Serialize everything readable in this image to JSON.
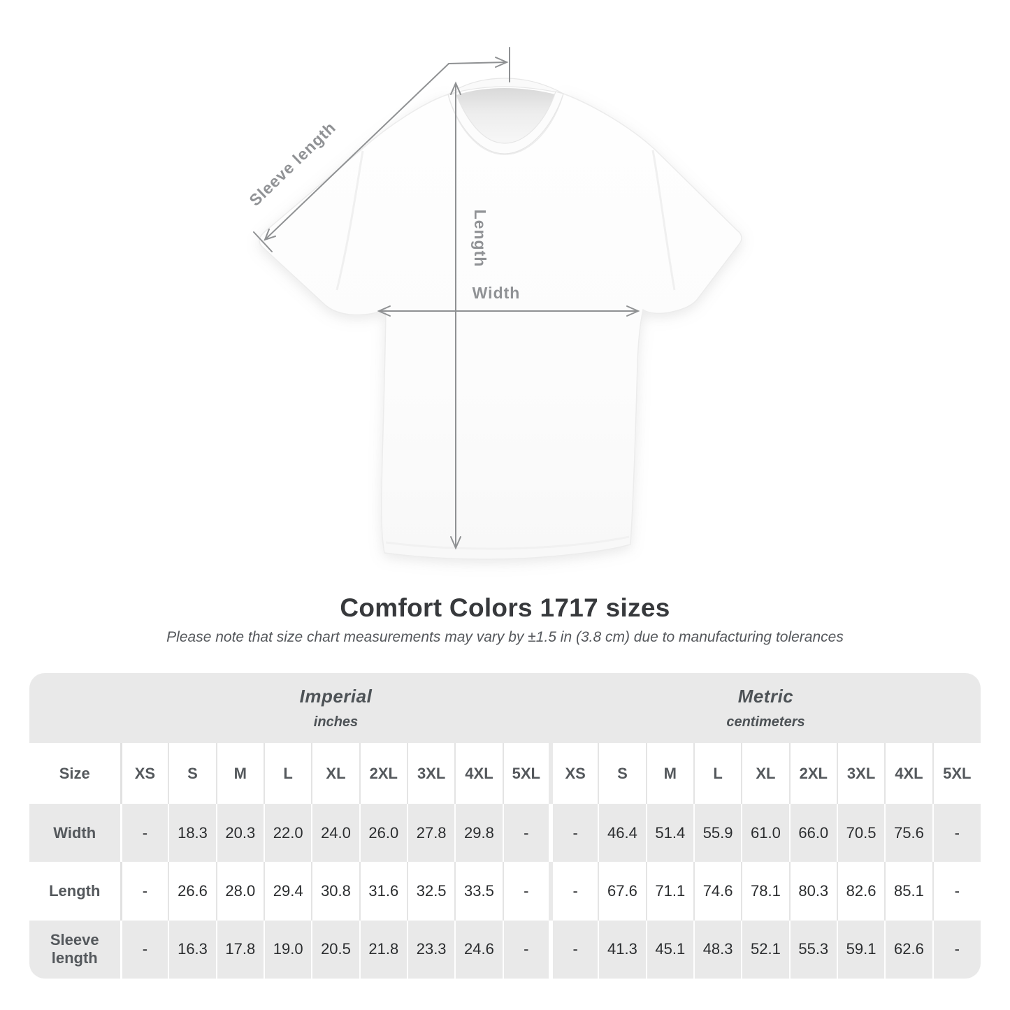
{
  "diagram": {
    "labels": {
      "sleeve": "Sleeve length",
      "length": "Length",
      "width": "Width"
    },
    "line_color": "#8f9193",
    "label_color": "#909295"
  },
  "heading": {
    "title": "Comfort Colors 1717 sizes",
    "note": "Please note that size chart measurements may vary by ±1.5 in (3.8 cm) due to manufacturing tolerances"
  },
  "table": {
    "size_label": "Size",
    "unit_groups": [
      {
        "name": "Imperial",
        "unit": "inches"
      },
      {
        "name": "Metric",
        "unit": "centimeters"
      }
    ],
    "sizes": [
      "XS",
      "S",
      "M",
      "L",
      "XL",
      "2XL",
      "3XL",
      "4XL",
      "5XL"
    ],
    "rows": [
      {
        "label": "Width",
        "imperial": [
          "-",
          "18.3",
          "20.3",
          "22.0",
          "24.0",
          "26.0",
          "27.8",
          "29.8",
          "-"
        ],
        "metric": [
          "-",
          "46.4",
          "51.4",
          "55.9",
          "61.0",
          "66.0",
          "70.5",
          "75.6",
          "-"
        ]
      },
      {
        "label": "Length",
        "imperial": [
          "-",
          "26.6",
          "28.0",
          "29.4",
          "30.8",
          "31.6",
          "32.5",
          "33.5",
          "-"
        ],
        "metric": [
          "-",
          "67.6",
          "71.1",
          "74.6",
          "78.1",
          "80.3",
          "82.6",
          "85.1",
          "-"
        ]
      },
      {
        "label": "Sleeve length",
        "imperial": [
          "-",
          "16.3",
          "17.8",
          "19.0",
          "20.5",
          "21.8",
          "23.3",
          "24.6",
          "-"
        ],
        "metric": [
          "-",
          "41.3",
          "45.1",
          "48.3",
          "52.1",
          "55.3",
          "59.1",
          "62.6",
          "-"
        ]
      }
    ],
    "colors": {
      "band_gray": "#e9e9e9",
      "header_text": "#54585c",
      "value_text": "#2b2d2f"
    }
  }
}
